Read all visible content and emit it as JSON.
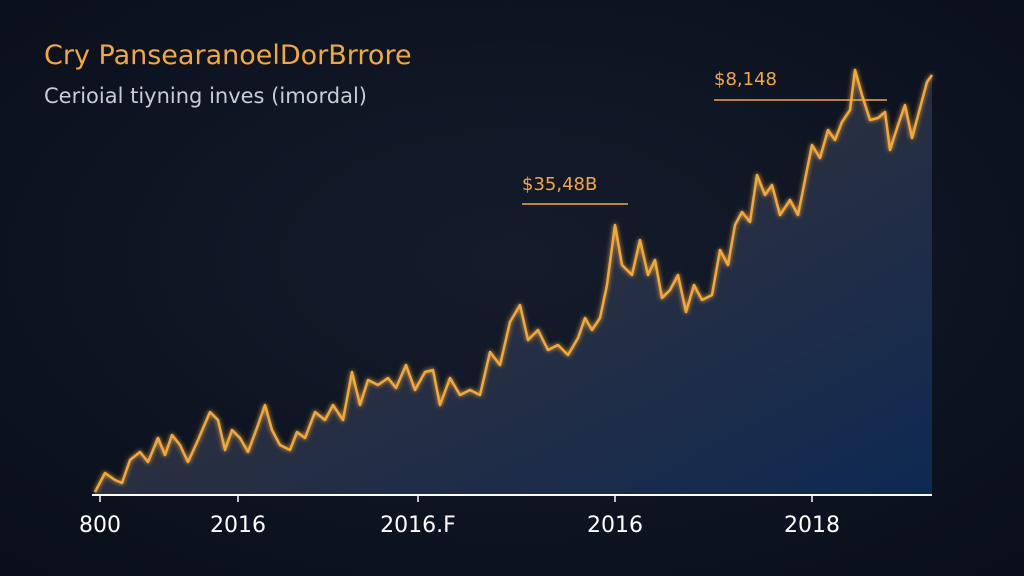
{
  "chart_data": {
    "type": "area",
    "title": "Cry PansearanoelDorBrrore",
    "subtitle": "Cerioial tiyning inves (imordal)",
    "annotations": [
      "$35,48B",
      "$8,148"
    ],
    "color": "#f2a93b",
    "x": [
      0,
      10,
      20,
      27,
      35,
      45,
      53,
      63,
      70,
      77,
      85,
      93,
      103,
      115,
      123,
      130,
      137,
      145,
      153,
      163,
      170,
      177,
      185,
      195,
      202,
      210,
      220,
      230,
      238,
      248,
      257,
      265,
      273,
      283,
      293,
      301,
      311,
      320,
      330,
      338,
      345,
      355,
      365,
      375,
      385,
      395,
      405,
      415,
      425,
      433,
      443,
      453,
      463,
      473,
      483,
      490,
      497,
      505,
      512,
      520,
      527,
      537,
      545,
      553,
      560,
      567,
      575,
      583,
      591,
      599,
      607,
      617,
      625,
      633,
      640,
      647,
      655,
      662,
      670,
      677,
      685,
      695,
      703,
      710,
      717,
      725,
      733,
      740,
      747,
      755,
      760,
      767,
      775,
      783,
      790,
      795,
      803,
      810,
      817,
      825,
      832,
      837
    ],
    "values": [
      3,
      22,
      15,
      12,
      35,
      43,
      33,
      57,
      40,
      60,
      50,
      33,
      55,
      83,
      75,
      45,
      65,
      57,
      43,
      70,
      90,
      65,
      50,
      45,
      63,
      57,
      83,
      75,
      90,
      75,
      123,
      90,
      115,
      110,
      117,
      107,
      130,
      105,
      123,
      125,
      90,
      117,
      100,
      105,
      100,
      143,
      130,
      173,
      190,
      155,
      165,
      145,
      150,
      140,
      157,
      177,
      165,
      177,
      210,
      270,
      230,
      220,
      255,
      220,
      235,
      197,
      205,
      220,
      183,
      210,
      195,
      200,
      245,
      230,
      270,
      283,
      273,
      320,
      300,
      310,
      280,
      295,
      280,
      315,
      350,
      337,
      365,
      355,
      373,
      385,
      425,
      400,
      375,
      377,
      383,
      345,
      370,
      390,
      357,
      387,
      413,
      420
    ],
    "xlim": [
      0,
      837
    ],
    "ylim": [
      0,
      435
    ],
    "xticks": [
      {
        "value": 5,
        "label": "800"
      },
      {
        "value": 143,
        "label": "2016"
      },
      {
        "value": 323,
        "label": "2016.F"
      },
      {
        "value": 520,
        "label": "2016"
      },
      {
        "value": 717,
        "label": "2018"
      }
    ]
  }
}
